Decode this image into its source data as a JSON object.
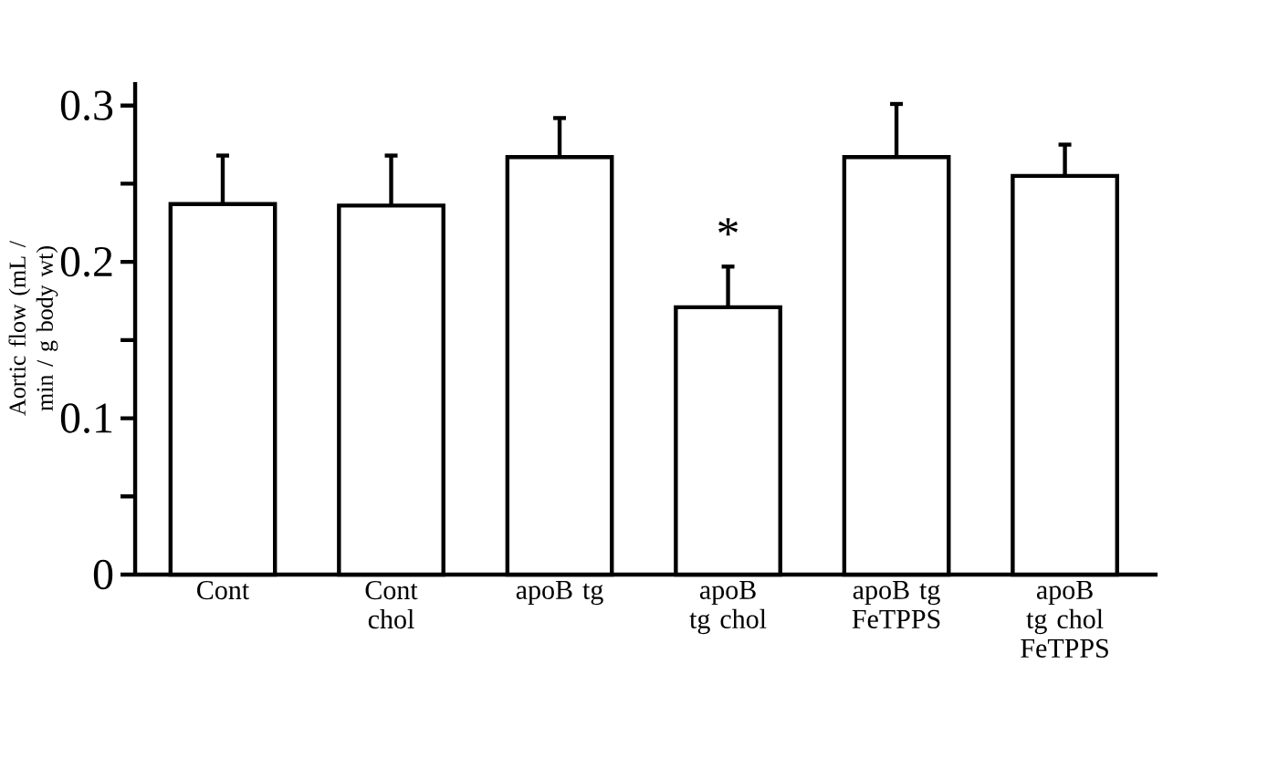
{
  "chart_data": {
    "type": "bar",
    "ylabel": "Aortic flow (mL / min / g body wt)",
    "categories": [
      "Cont",
      "Cont chol",
      "apoB tg",
      "apoB tg chol",
      "apoB tg FeTPPS",
      "apoB tg chol FeTPPS"
    ],
    "values": [
      0.237,
      0.236,
      0.267,
      0.171,
      0.267,
      0.255
    ],
    "errors": [
      [
        0.237,
        0.268
      ],
      [
        0.236,
        0.268
      ],
      [
        0.267,
        0.292
      ],
      [
        0.171,
        0.197
      ],
      [
        0.267,
        0.301
      ],
      [
        0.255,
        0.275
      ]
    ],
    "color": "#ffffff",
    "ylim": [
      0,
      0.315
    ],
    "yticks": [
      0,
      {
        "value": 0.05,
        "label": null
      },
      0.1,
      {
        "value": 0.15,
        "label": null
      },
      0.2,
      {
        "value": 0.25,
        "label": null
      },
      0.3
    ],
    "annotations": [
      {
        "text": "*",
        "x": "apoB tg chol",
        "y": 0.197
      }
    ],
    "grid": false
  }
}
